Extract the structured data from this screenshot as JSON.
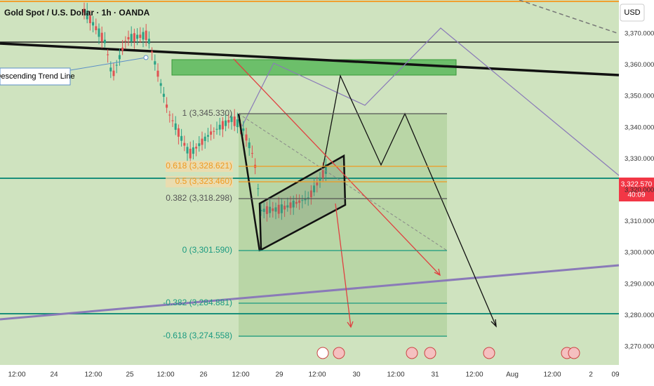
{
  "header": {
    "title": "Gold Spot / U.S. Dollar · 1h · OANDA",
    "currency": "USD"
  },
  "price_axis": {
    "ticks": [
      "3,370.000",
      "3,360.000",
      "3,350.000",
      "3,340.000",
      "3,330.000",
      "3,320.000",
      "3,310.000",
      "3,300.000",
      "3,290.000",
      "3,280.000",
      "3,270.000"
    ],
    "current_price": "3,322.570",
    "countdown": "40:09"
  },
  "time_axis": {
    "labels": [
      "12:00",
      "24",
      "12:00",
      "25",
      "12:00",
      "26",
      "12:00",
      "29",
      "12:00",
      "30",
      "12:00",
      "31",
      "12:00",
      "Aug",
      "12:00",
      "2",
      "09"
    ]
  },
  "fib_levels": [
    "1 (3,345.330)",
    "0.618 (3,328.621)",
    "0.5 (3,323.460)",
    "0.382 (3,318.298)",
    "0 (3,301.590)",
    "-0.382 (3,284.881)",
    "-0.618 (3,274.558)"
  ],
  "annotations": {
    "trend_line": "Descending Trend Line"
  }
}
